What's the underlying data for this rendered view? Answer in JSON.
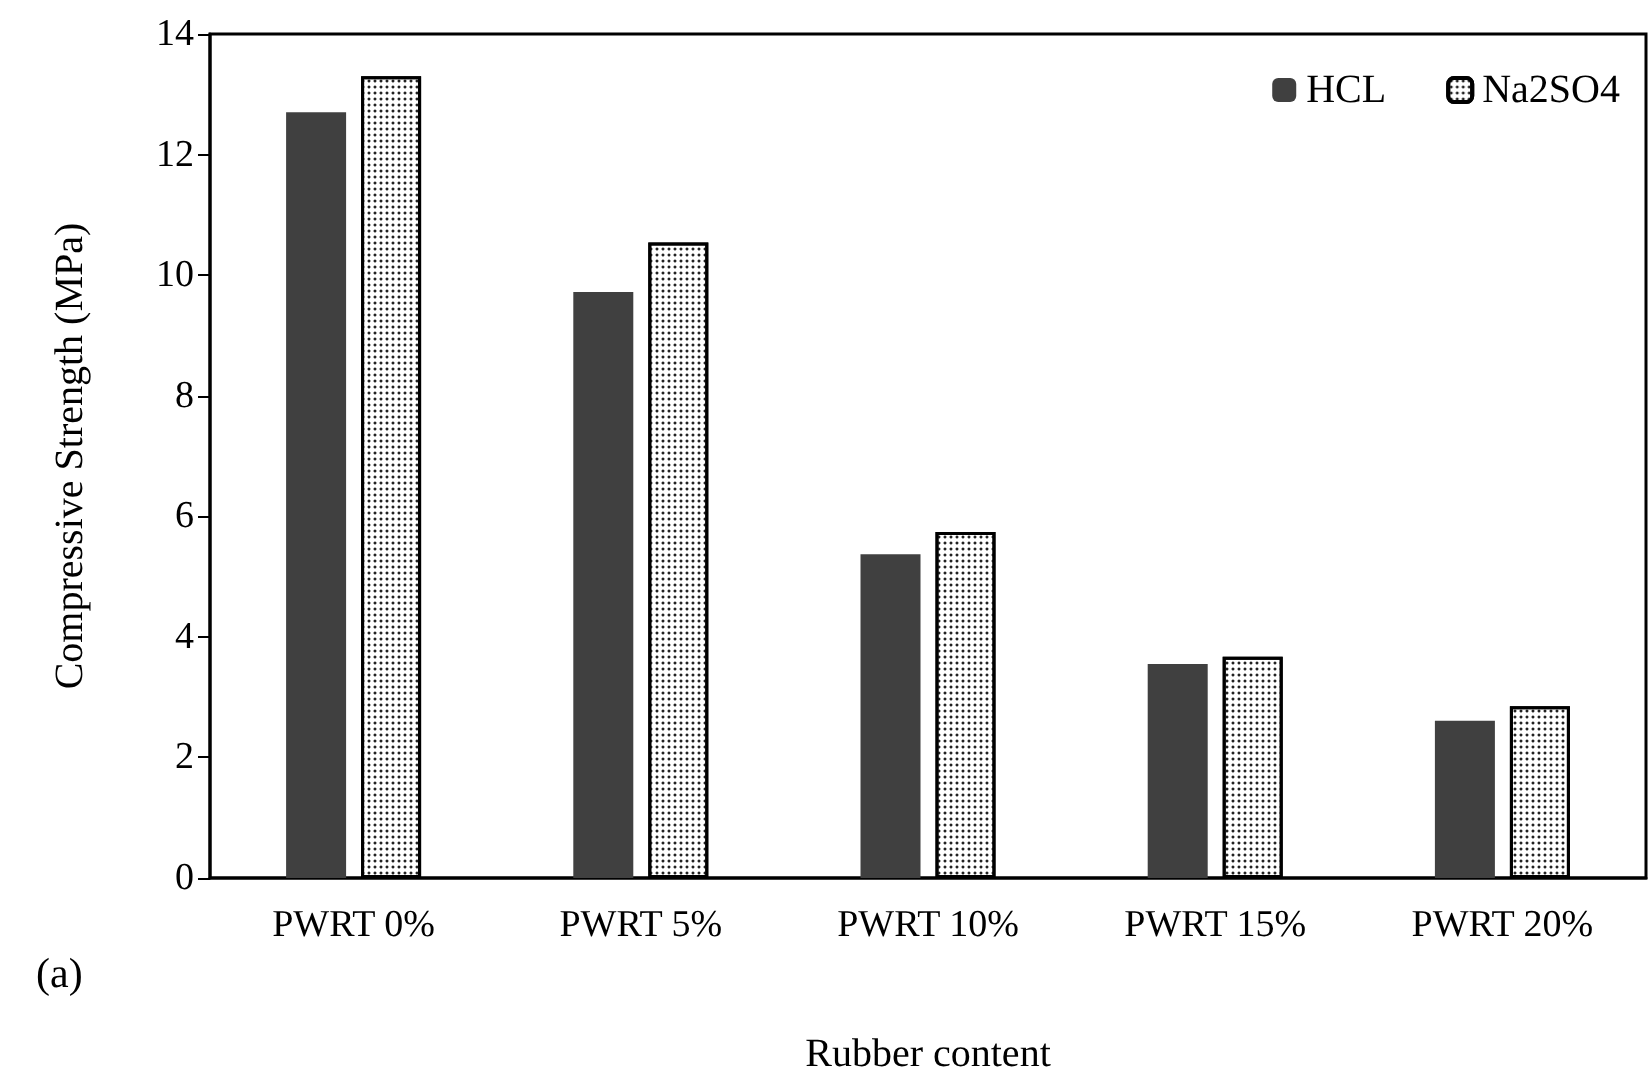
{
  "chart_data": {
    "type": "bar",
    "xlabel": "Rubber content",
    "ylabel": "Compressive Strength (MPa)",
    "categories": [
      "PWRT 0%",
      "PWRT 5%",
      "PWRT 10%",
      "PWRT 15%",
      "PWRT 20%"
    ],
    "series": [
      {
        "name": "HCL",
        "color": "#404040",
        "values": [
          12.7,
          9.72,
          5.37,
          3.55,
          2.61
        ]
      },
      {
        "name": "Na2SO4",
        "color": "#ffffff",
        "values": [
          13.3,
          10.54,
          5.74,
          3.67,
          2.85
        ]
      }
    ],
    "ylim": [
      0,
      14
    ],
    "yticks": [
      0,
      2,
      4,
      6,
      8,
      10,
      12,
      14
    ],
    "grid": false,
    "legend": "top right",
    "annotations": [
      "(a)"
    ]
  }
}
